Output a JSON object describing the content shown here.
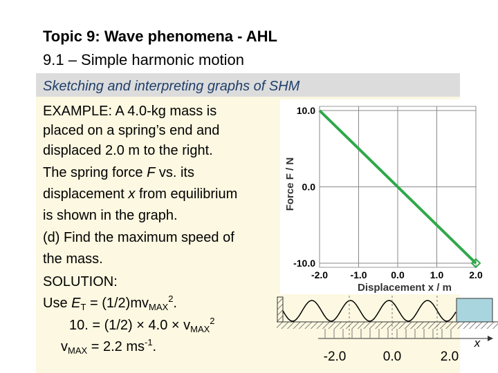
{
  "header": {
    "title": "Topic 9: Wave phenomena - AHL",
    "subtitle": "9.1 – Simple harmonic motion",
    "section": "Sketching and interpreting graphs of SHM"
  },
  "body": [
    [
      "EXAMPLE:  A 4.0-kg mass is"
    ],
    [
      "placed on a spring’s end and"
    ],
    [
      "displaced 2.0 m to the right."
    ],
    [
      "The spring force ",
      "F",
      " vs. its"
    ],
    [
      "displacement ",
      "x",
      " from equilibrium"
    ],
    [
      "is shown in the graph."
    ],
    [
      "(d) Find the maximum speed of"
    ],
    [
      "the mass."
    ],
    [
      "SOLUTION:"
    ],
    [
      "Use ",
      "E",
      "T",
      " = (1/2)",
      "mv",
      "MAX",
      "2",
      "."
    ],
    [
      "10. = (1/2) × 4.0 × v",
      "MAX",
      "2"
    ],
    [
      "v",
      "MAX",
      " = 2.2 ms",
      "-1",
      "."
    ]
  ],
  "chart_data": {
    "type": "line",
    "x_label": "Displacement x / m",
    "y_label": "Force F / N",
    "x": [
      -2.0,
      2.0
    ],
    "series": [
      {
        "color": "#2ea84a",
        "values": [
          10.0,
          -10.0
        ]
      }
    ],
    "xlim": [
      -2.0,
      2.0
    ],
    "ylim": [
      -10.0,
      10.0
    ],
    "xticks": [
      {
        "value": -2,
        "label": "-2.0"
      },
      {
        "value": -1,
        "label": "-1.0"
      },
      {
        "value": 0,
        "label": "0.0"
      },
      {
        "value": 1,
        "label": "1.0"
      },
      {
        "value": 2,
        "label": "2.0"
      }
    ],
    "yticks": [
      {
        "value": -10,
        "label": "-10.0"
      },
      {
        "value": 0,
        "label": "0.0"
      },
      {
        "value": 10,
        "label": "10.0"
      }
    ],
    "grid": true
  },
  "diagram": {
    "positions": [
      "-2.0",
      "0.0",
      "2.0"
    ],
    "axis_label": "x"
  }
}
